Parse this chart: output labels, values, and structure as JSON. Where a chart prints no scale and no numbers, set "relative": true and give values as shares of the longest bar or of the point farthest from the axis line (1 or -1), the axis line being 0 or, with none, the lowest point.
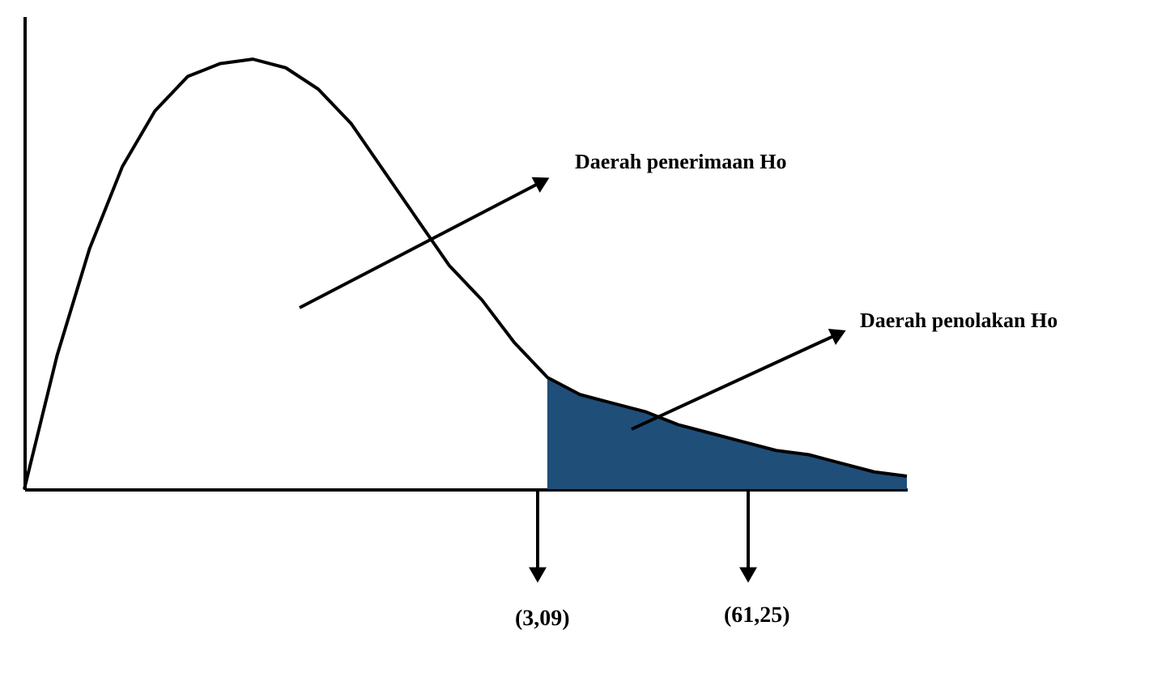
{
  "chart_data": {
    "type": "line",
    "relative": true,
    "tick_labels": false,
    "categories": [
      null,
      null,
      null,
      null,
      null,
      null,
      null,
      null,
      null,
      null,
      null,
      null,
      null,
      null,
      null,
      null,
      null,
      null,
      null,
      null,
      null,
      null,
      null,
      null,
      null,
      null,
      null,
      null
    ],
    "series": [
      {
        "type": "area",
        "color": "#1f4e79",
        "values": [
          null,
          null,
          null,
          null,
          null,
          null,
          null,
          null,
          null,
          null,
          null,
          null,
          null,
          null,
          null,
          null,
          0.26,
          0.22,
          0.2,
          0.18,
          0.15,
          0.13,
          0.11,
          0.09,
          0.08,
          0.06,
          0.04,
          0.03
        ]
      },
      {
        "type": "line",
        "color": "#000000",
        "values": [
          0,
          0.31,
          0.56,
          0.75,
          0.88,
          0.96,
          0.99,
          1,
          0.98,
          0.93,
          0.85,
          0.74,
          0.63,
          0.52,
          0.44,
          0.34,
          0.26,
          0.22,
          0.2,
          0.18,
          0.15,
          0.13,
          0.11,
          0.09,
          0.08,
          0.06,
          0.04,
          0.03
        ]
      }
    ],
    "annotations": [
      "Daerah penerimaan Ho",
      "Daerah penolakan Ho",
      "(3,09)",
      "(61,25)"
    ]
  }
}
